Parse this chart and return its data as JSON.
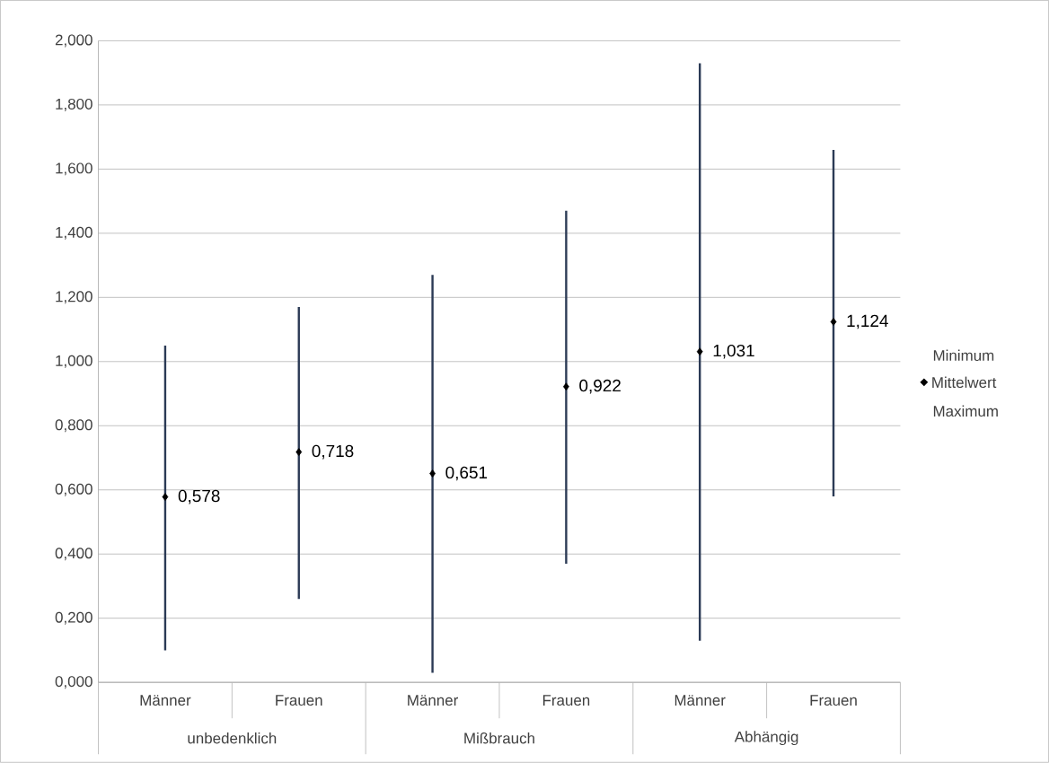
{
  "chart_data": {
    "type": "scatter",
    "categories": [
      "Männer",
      "Frauen",
      "Männer",
      "Frauen",
      "Männer",
      "Frauen"
    ],
    "series": [
      {
        "name": "Mittelwert",
        "color": "#000000",
        "values": [
          0.578,
          0.718,
          0.651,
          0.922,
          1.031,
          1.124
        ],
        "value_labels": [
          "0,578",
          "0,718",
          "0,651",
          "0,922",
          "1,031",
          "1,124"
        ],
        "errors": [
          [
            0.1,
            1.05
          ],
          [
            0.26,
            1.17
          ],
          [
            0.03,
            1.27
          ],
          [
            0.37,
            1.47
          ],
          [
            0.13,
            1.93
          ],
          [
            0.58,
            1.66
          ]
        ]
      }
    ],
    "ylim": [
      0,
      2
    ],
    "yticks": [
      {
        "value": 0,
        "label": "0,000"
      },
      {
        "value": 0.2,
        "label": "0,200"
      },
      {
        "value": 0.4,
        "label": "0,400"
      },
      {
        "value": 0.6,
        "label": "0,600"
      },
      {
        "value": 0.8,
        "label": "0,800"
      },
      {
        "value": 1,
        "label": "1,000"
      },
      {
        "value": 1.2,
        "label": "1,200"
      },
      {
        "value": 1.4,
        "label": "1,400"
      },
      {
        "value": 1.6,
        "label": "1,600"
      },
      {
        "value": 1.8,
        "label": "1,800"
      },
      {
        "value": 2,
        "label": "2,000"
      }
    ],
    "annotations": [
      "unbedenklich",
      "Mißbrauch",
      "Abhängig",
      "Minimum",
      "Maximum"
    ],
    "grid": "y",
    "legend": "right",
    "marker": "diamond"
  }
}
